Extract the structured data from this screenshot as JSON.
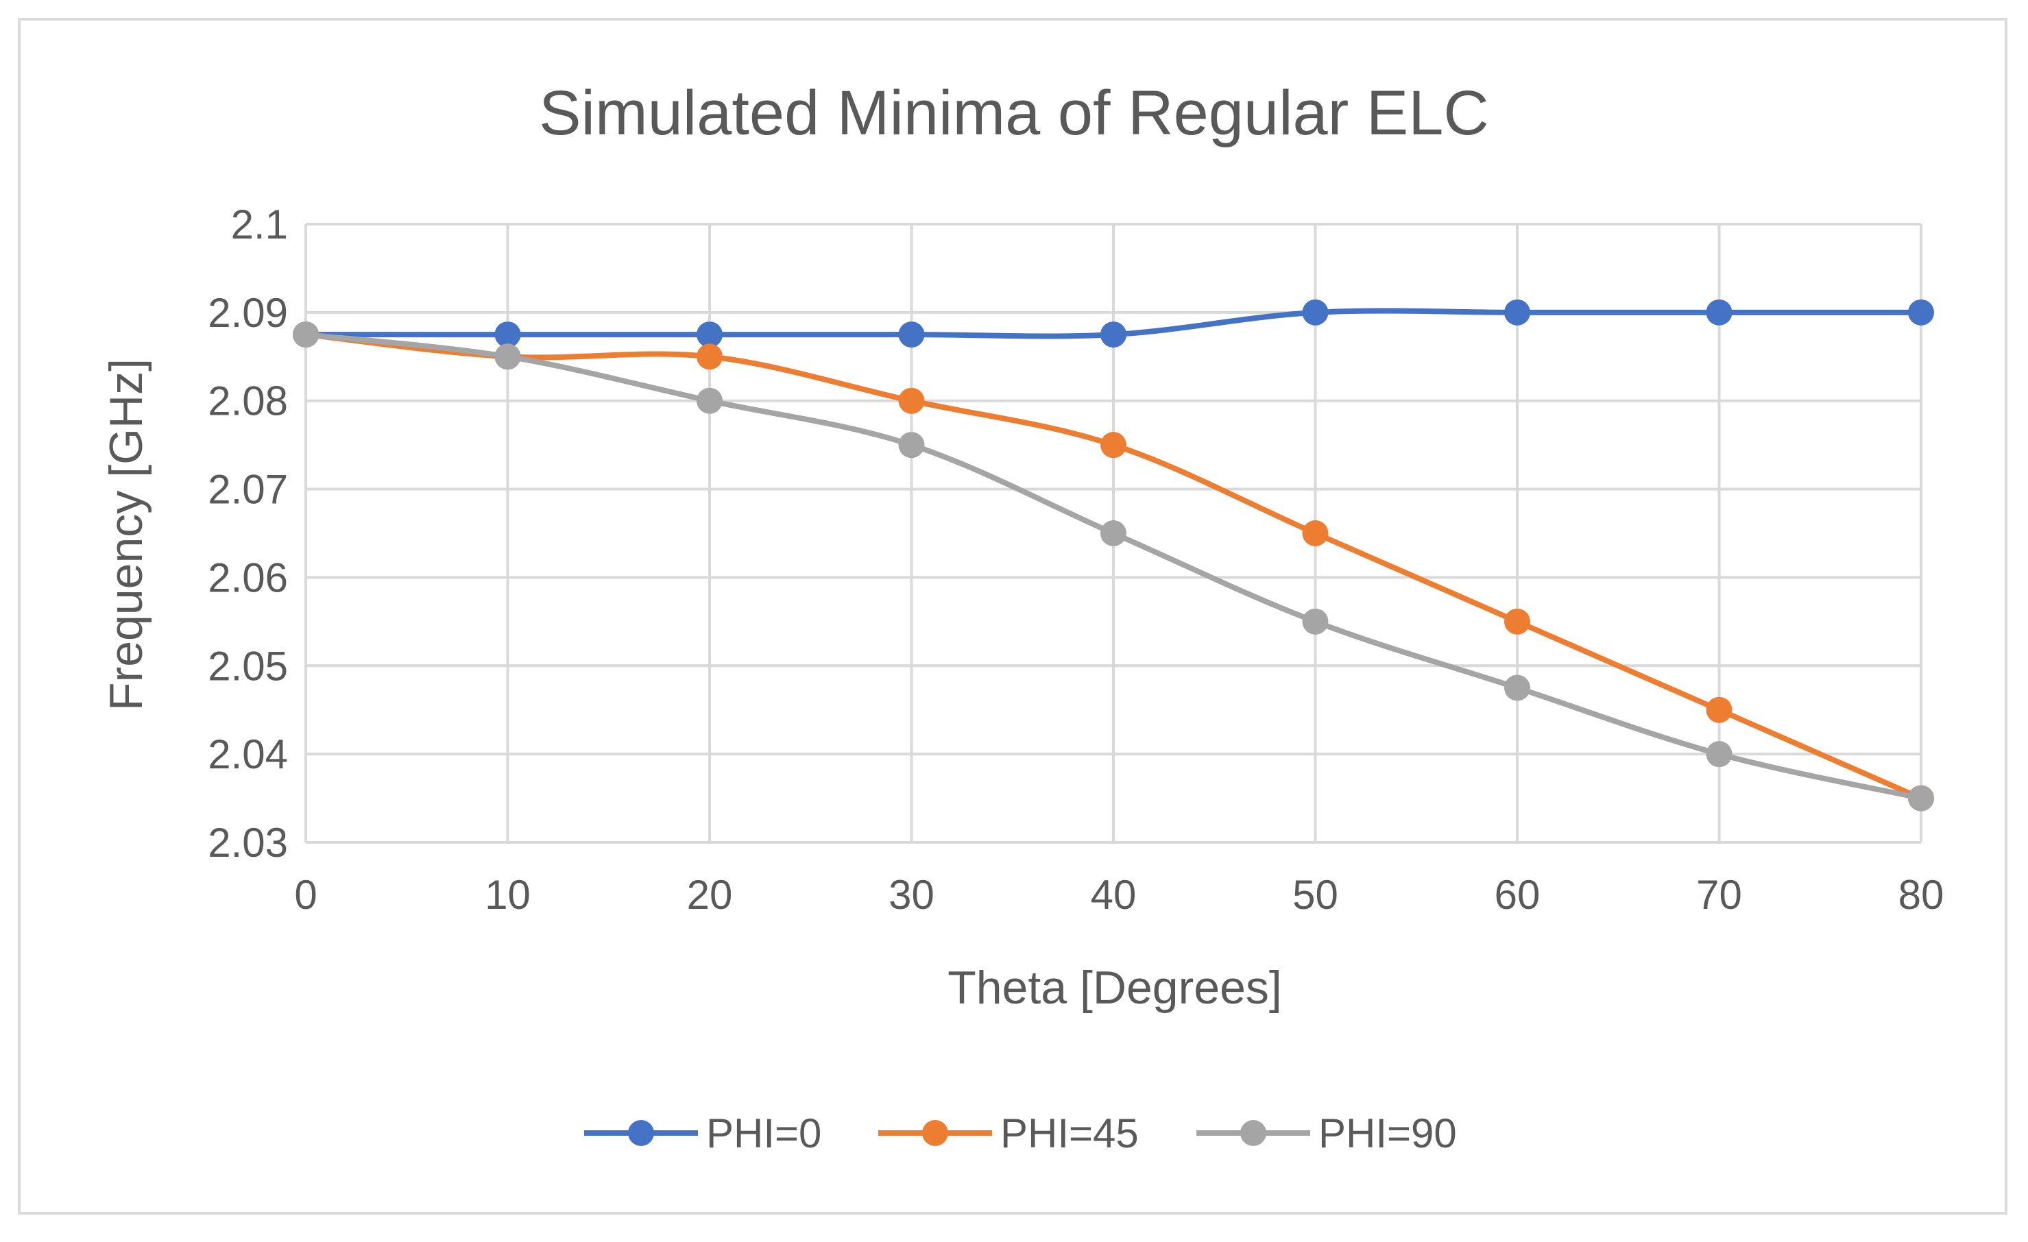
{
  "chart_data": {
    "type": "line",
    "title": "Simulated Minima of Regular ELC",
    "xlabel": "Theta [Degrees]",
    "ylabel": "Frequency [GHz]",
    "x": [
      0,
      10,
      20,
      30,
      40,
      50,
      60,
      70,
      80
    ],
    "xlim": [
      0,
      80
    ],
    "ylim": [
      2.03,
      2.1
    ],
    "x_ticks": [
      "0",
      "10",
      "20",
      "30",
      "40",
      "50",
      "60",
      "70",
      "80"
    ],
    "y_ticks": [
      "2.03",
      "2.04",
      "2.05",
      "2.06",
      "2.07",
      "2.08",
      "2.09",
      "2.1"
    ],
    "y_tick_values": [
      2.03,
      2.04,
      2.05,
      2.06,
      2.07,
      2.08,
      2.09,
      2.1
    ],
    "grid": true,
    "legend_position": "bottom",
    "series": [
      {
        "name": "PHI=0",
        "color": "#4472c4",
        "values": [
          2.0875,
          2.0875,
          2.0875,
          2.0875,
          2.0875,
          2.09,
          2.09,
          2.09,
          2.09
        ]
      },
      {
        "name": "PHI=45",
        "color": "#ed7d31",
        "values": [
          2.0875,
          2.085,
          2.085,
          2.08,
          2.075,
          2.065,
          2.055,
          2.045,
          2.035
        ]
      },
      {
        "name": "PHI=90",
        "color": "#a5a5a5",
        "values": [
          2.0875,
          2.085,
          2.08,
          2.075,
          2.065,
          2.055,
          2.0475,
          2.04,
          2.035
        ]
      }
    ]
  }
}
